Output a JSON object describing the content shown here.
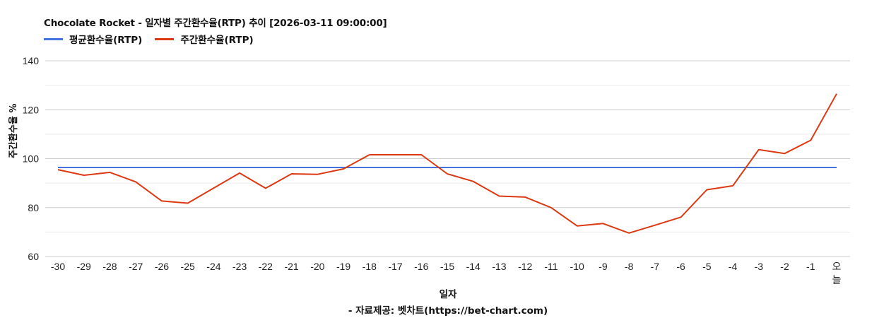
{
  "header": {
    "title": "Chocolate Rocket - 일자별 주간환수율(RTP) 추이 [2026-03-11 09:00:00]"
  },
  "legend": [
    {
      "label": "평균환수율(RTP)",
      "color": "#4472e0"
    },
    {
      "label": "주간환수율(RTP)",
      "color": "#dc3912"
    }
  ],
  "axes": {
    "ylabel": "주간환수율 %",
    "xlabel": "일자"
  },
  "footer": {
    "source": "- 자료제공: 벳차트(https://bet-chart.com)"
  },
  "chart_data": {
    "type": "line",
    "title": "Chocolate Rocket - 일자별 주간환수율(RTP) 추이 [2026-03-11 09:00:00]",
    "xlabel": "일자",
    "ylabel": "주간환수율 %",
    "ylim": [
      60,
      140
    ],
    "yticks": [
      60,
      80,
      100,
      120,
      140
    ],
    "minor_gridlines": [
      70,
      90,
      110,
      130
    ],
    "grid": true,
    "legend_position": "top-left",
    "categories": [
      "-30",
      "-29",
      "-28",
      "-27",
      "-26",
      "-25",
      "-24",
      "-23",
      "-22",
      "-21",
      "-20",
      "-19",
      "-18",
      "-17",
      "-16",
      "-15",
      "-14",
      "-13",
      "-12",
      "-11",
      "-10",
      "-9",
      "-8",
      "-7",
      "-6",
      "-5",
      "-4",
      "-3",
      "-2",
      "-1",
      "오늘"
    ],
    "series": [
      {
        "name": "평균환수율(RTP)",
        "color": "#4472e0",
        "values": [
          96.4,
          96.4,
          96.4,
          96.4,
          96.4,
          96.4,
          96.4,
          96.4,
          96.4,
          96.4,
          96.4,
          96.4,
          96.4,
          96.4,
          96.4,
          96.4,
          96.4,
          96.4,
          96.4,
          96.4,
          96.4,
          96.4,
          96.4,
          96.4,
          96.4,
          96.4,
          96.4,
          96.4,
          96.4,
          96.4,
          96.4
        ]
      },
      {
        "name": "주간환수율(RTP)",
        "color": "#dc3912",
        "values": [
          95.5,
          93.2,
          94.4,
          90.5,
          82.7,
          81.8,
          88.0,
          94.1,
          87.9,
          93.8,
          93.6,
          95.8,
          101.6,
          101.6,
          101.6,
          93.8,
          90.7,
          84.7,
          84.3,
          80.0,
          72.5,
          73.5,
          69.6,
          72.8,
          76.1,
          87.3,
          88.9,
          103.7,
          102.1,
          107.5,
          126.5
        ]
      }
    ]
  }
}
